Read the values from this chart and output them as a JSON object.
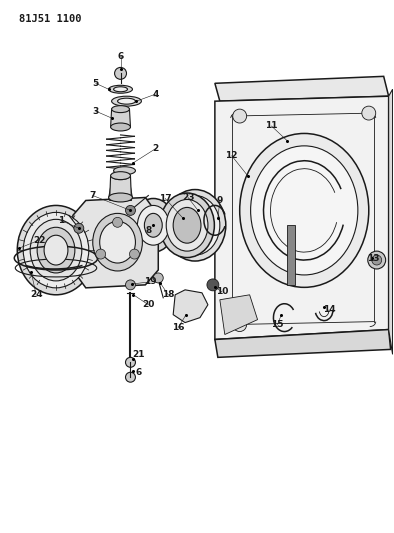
{
  "title_code": "81J51 1100",
  "bg_color": "#ffffff",
  "line_color": "#1a1a1a",
  "fig_width": 3.94,
  "fig_height": 5.33,
  "dpi": 100
}
